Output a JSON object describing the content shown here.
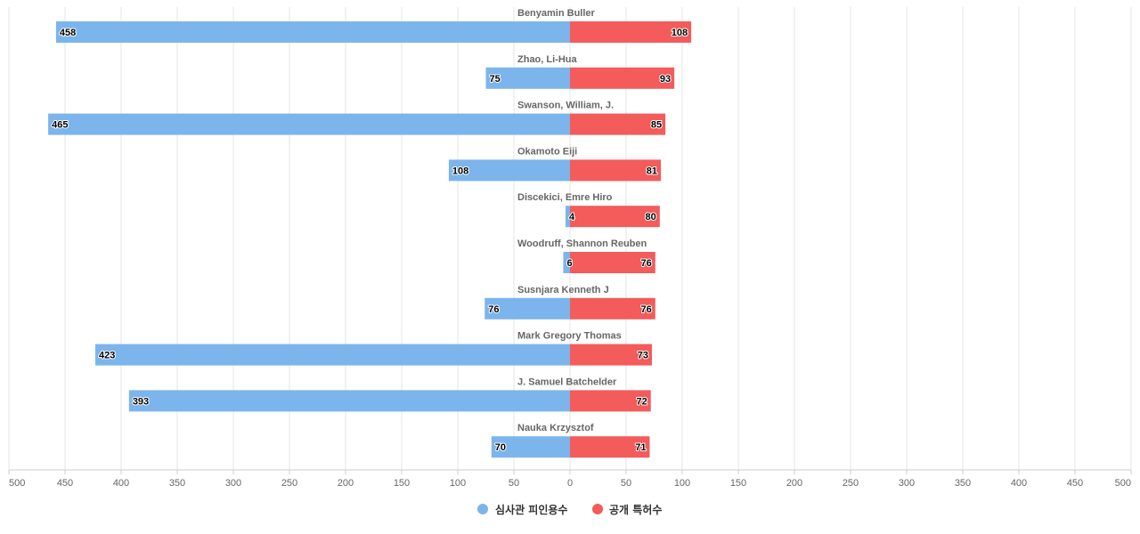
{
  "chart_data": {
    "type": "bar",
    "orientation": "horizontal",
    "layout": "diverging",
    "categories": [
      "Benyamin Buller",
      "Zhao, Li-Hua",
      "Swanson, William, J.",
      "Okamoto Eiji",
      "Discekici, Emre Hiro",
      "Woodruff, Shannon Reuben",
      "Susnjara Kenneth J",
      "Mark Gregory Thomas",
      "J. Samuel Batchelder",
      "Nauka Krzysztof"
    ],
    "series": [
      {
        "name": "심사관 피인용수",
        "side": "left",
        "color": "#7cb5ec",
        "values": [
          458,
          75,
          465,
          108,
          4,
          6,
          76,
          423,
          393,
          70
        ]
      },
      {
        "name": "공개 특허수",
        "side": "right",
        "color": "#f45b5b",
        "values": [
          108,
          93,
          85,
          81,
          80,
          76,
          76,
          73,
          72,
          71
        ]
      }
    ],
    "xlim": [
      -500,
      500
    ],
    "xticks": [
      -500,
      -450,
      -400,
      -350,
      -300,
      -250,
      -200,
      -150,
      -100,
      -50,
      0,
      50,
      100,
      150,
      200,
      250,
      300,
      350,
      400,
      450,
      500
    ],
    "xtick_labels": [
      "500",
      "450",
      "400",
      "350",
      "300",
      "250",
      "200",
      "150",
      "100",
      "50",
      "0",
      "50",
      "100",
      "150",
      "200",
      "250",
      "300",
      "350",
      "400",
      "450",
      "500"
    ],
    "grid": true,
    "legend_position": "bottom-center",
    "title": "",
    "xlabel": "",
    "ylabel": ""
  }
}
